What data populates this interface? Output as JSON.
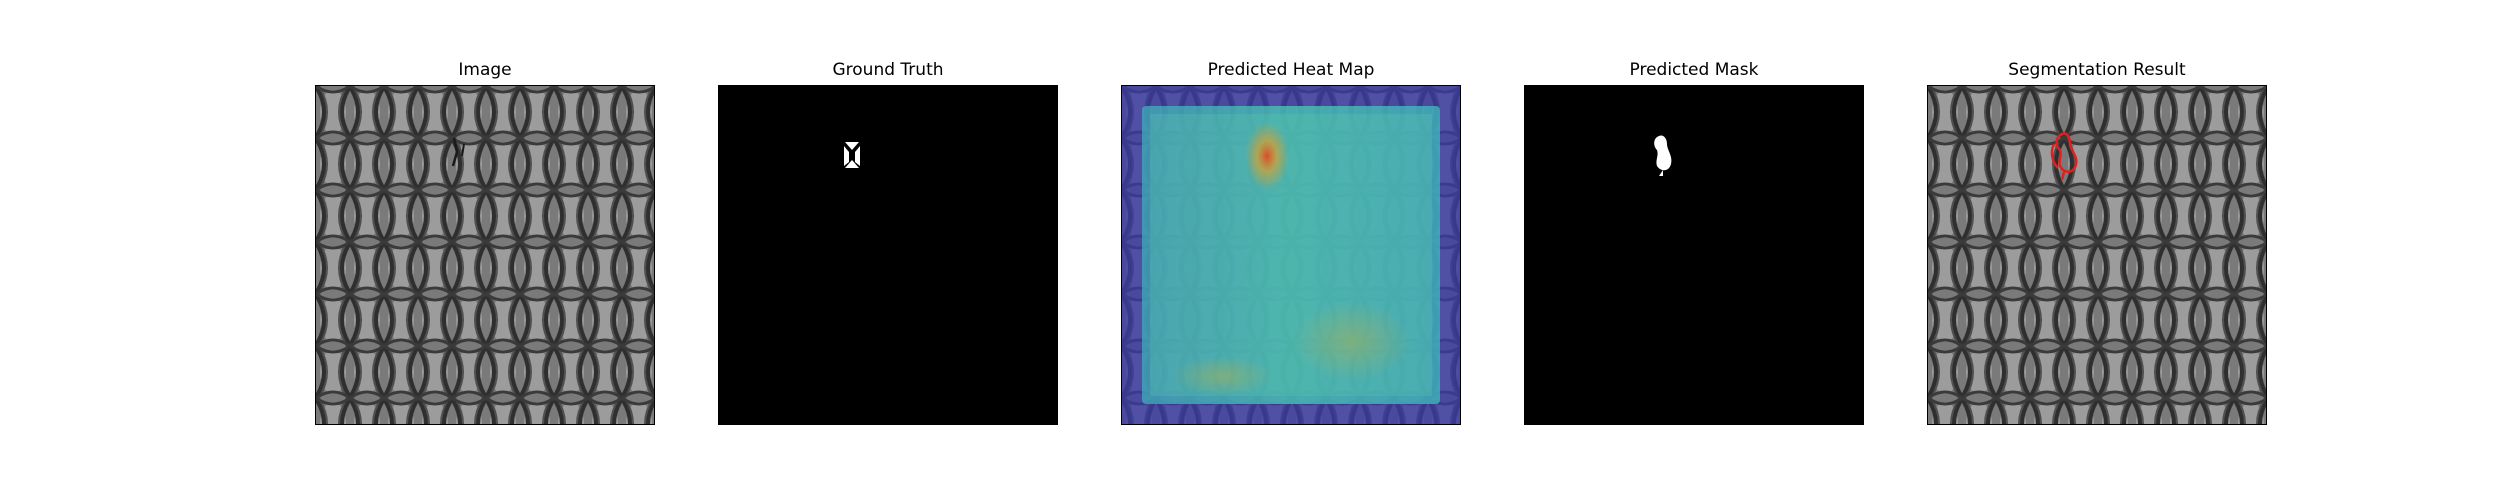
{
  "figure": {
    "background": "#ffffff",
    "panels": [
      {
        "title": "Image",
        "content": "texture-image"
      },
      {
        "title": "Ground Truth",
        "content": "binary-mask"
      },
      {
        "title": "Predicted Heat Map",
        "content": "heatmap-overlay"
      },
      {
        "title": "Predicted Mask",
        "content": "binary-mask"
      },
      {
        "title": "Segmentation Result",
        "content": "texture-with-contour"
      }
    ]
  },
  "colors": {
    "texture_base": "#7a7a7a",
    "texture_dark": "#2f2f2f",
    "texture_light": "#a8a8a8",
    "mask_background": "#000000",
    "mask_foreground": "#ffffff",
    "heatmap_low": "#3b3ba6",
    "heatmap_mid": "#3fc2b0",
    "heatmap_hot": "#d88a2a",
    "contour": "#e02020"
  }
}
